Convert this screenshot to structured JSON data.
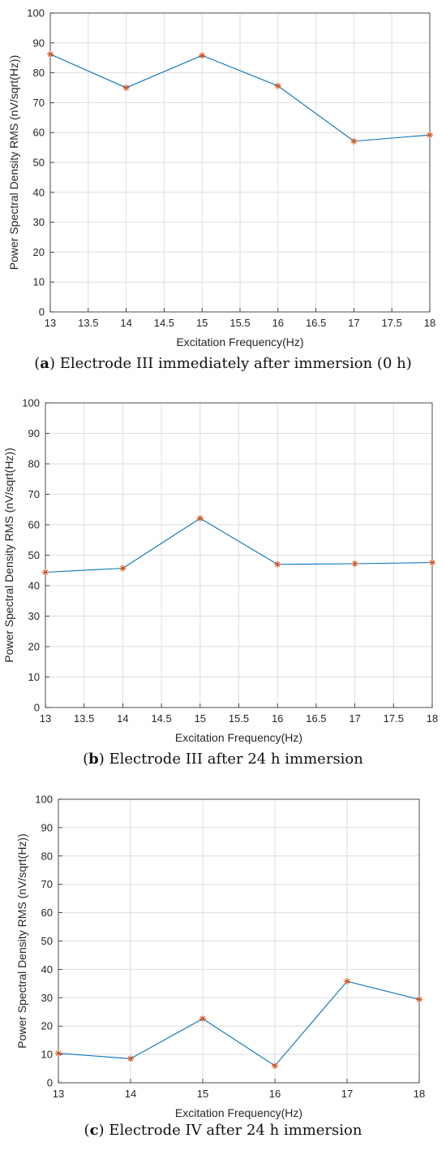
{
  "chart_data": [
    {
      "type": "line",
      "caption": {
        "tag": "a",
        "text": " Electrode III immediately after immersion (0 h)"
      },
      "xlabel": "Excitation Frequency(Hz)",
      "ylabel": "Power Spectral Density RMS (nV/sqrt(Hz))",
      "xlim": [
        13,
        18
      ],
      "ylim": [
        0,
        100
      ],
      "xticks": [
        "13",
        "13.5",
        "14",
        "14.5",
        "15",
        "15.5",
        "16",
        "16.5",
        "17",
        "17.5",
        "18"
      ],
      "yticks": [
        "0",
        "10",
        "20",
        "30",
        "40",
        "50",
        "60",
        "70",
        "80",
        "90",
        "100"
      ],
      "grid": true,
      "x": [
        13,
        14,
        15,
        16,
        17,
        18
      ],
      "y": [
        86.2,
        75.0,
        85.8,
        75.6,
        57.1,
        59.2
      ]
    },
    {
      "type": "line",
      "caption": {
        "tag": "b",
        "text": " Electrode III after 24 h immersion"
      },
      "xlabel": "Excitation Frequency(Hz)",
      "ylabel": "Power Spectral Density RMS (nV/sqrt(Hz))",
      "xlim": [
        13,
        18
      ],
      "ylim": [
        0,
        100
      ],
      "xticks": [
        "13",
        "13.5",
        "14",
        "14.5",
        "15",
        "15.5",
        "16",
        "16.5",
        "17",
        "17.5",
        "18"
      ],
      "yticks": [
        "0",
        "10",
        "20",
        "30",
        "40",
        "50",
        "60",
        "70",
        "80",
        "90",
        "100"
      ],
      "grid": true,
      "x": [
        13,
        14,
        15,
        16,
        17,
        18
      ],
      "y": [
        44.4,
        45.7,
        62.1,
        47.0,
        47.2,
        47.6
      ]
    },
    {
      "type": "line",
      "caption": {
        "tag": "c",
        "text": " Electrode IV after 24 h immersion"
      },
      "xlabel": "Excitation Frequency(Hz)",
      "ylabel": "Power Spectral Density RMS (nV/sqrt(Hz))",
      "xlim": [
        13,
        18
      ],
      "ylim": [
        0,
        100
      ],
      "xticks": [
        "13",
        "14",
        "15",
        "16",
        "17",
        "18"
      ],
      "yticks": [
        "0",
        "10",
        "20",
        "30",
        "40",
        "50",
        "60",
        "70",
        "80",
        "90",
        "100"
      ],
      "grid": true,
      "x": [
        13,
        14,
        15,
        16,
        17,
        18
      ],
      "y": [
        10.4,
        8.5,
        22.6,
        6.0,
        35.8,
        29.4
      ]
    }
  ],
  "colors": {
    "line": "#0072BD",
    "marker": "#D95319",
    "grid": "#DEDEDE",
    "axis": "#262626"
  }
}
